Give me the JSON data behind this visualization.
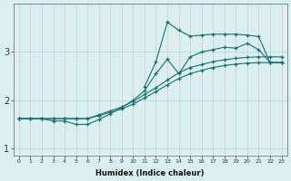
{
  "xlabel": "Humidex (Indice chaleur)",
  "bg_color": "#daf0f0",
  "grid_color_v": "#e8c8c8",
  "grid_color_h": "#b8dede",
  "line_color": "#1a7070",
  "marker": "+",
  "xlim": [
    -0.5,
    23.5
  ],
  "ylim": [
    0.85,
    4.0
  ],
  "yticks": [
    1,
    2,
    3
  ],
  "xticks": [
    0,
    1,
    2,
    3,
    4,
    5,
    6,
    7,
    8,
    9,
    10,
    11,
    12,
    13,
    14,
    15,
    16,
    17,
    18,
    19,
    20,
    21,
    22,
    23
  ],
  "series": [
    {
      "x": [
        0,
        1,
        2,
        3,
        4,
        5,
        6,
        7,
        8,
        9,
        10,
        11,
        12,
        13,
        14,
        15,
        16,
        17,
        18,
        19,
        20,
        21,
        22,
        23
      ],
      "y": [
        1.62,
        1.62,
        1.62,
        1.62,
        1.62,
        1.62,
        1.62,
        1.68,
        1.75,
        1.82,
        1.92,
        2.05,
        2.18,
        2.32,
        2.45,
        2.55,
        2.62,
        2.68,
        2.72,
        2.75,
        2.77,
        2.78,
        2.78,
        2.78
      ]
    },
    {
      "x": [
        0,
        1,
        2,
        3,
        4,
        5,
        6,
        7,
        8,
        9,
        10,
        11,
        12,
        13,
        14,
        15,
        16,
        17,
        18,
        19,
        20,
        21,
        22,
        23
      ],
      "y": [
        1.62,
        1.62,
        1.62,
        1.62,
        1.62,
        1.62,
        1.62,
        1.7,
        1.78,
        1.86,
        1.98,
        2.12,
        2.26,
        2.42,
        2.57,
        2.68,
        2.74,
        2.8,
        2.84,
        2.87,
        2.89,
        2.9,
        2.9,
        2.9
      ]
    },
    {
      "x": [
        0,
        1,
        2,
        3,
        4,
        5,
        6,
        7,
        8,
        9,
        10,
        11,
        12,
        13,
        14,
        15,
        16,
        17,
        18,
        19,
        20,
        21,
        22,
        23
      ],
      "y": [
        1.62,
        1.62,
        1.62,
        1.57,
        1.57,
        1.5,
        1.5,
        1.6,
        1.72,
        1.85,
        2.0,
        2.2,
        2.55,
        2.85,
        2.55,
        2.9,
        3.0,
        3.05,
        3.1,
        3.08,
        3.18,
        3.05,
        2.78,
        2.78
      ]
    },
    {
      "x": [
        11,
        12,
        13,
        14,
        15,
        16,
        17,
        18,
        19,
        20,
        21,
        22,
        23
      ],
      "y": [
        2.28,
        2.8,
        3.62,
        3.45,
        3.33,
        3.35,
        3.37,
        3.37,
        3.37,
        3.35,
        3.32,
        2.78,
        2.78
      ]
    }
  ]
}
